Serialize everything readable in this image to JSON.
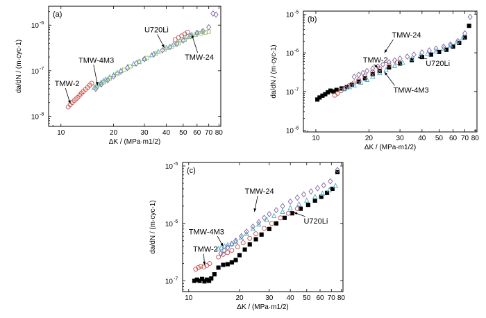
{
  "chart_data": [
    {
      "type": "scatter",
      "panel_label": "(a)",
      "xscale": "log",
      "yscale": "log",
      "xlim": [
        8.5,
        82
      ],
      "ylim": [
        6e-09,
        2.6e-06
      ],
      "x_ticks": [
        10,
        20,
        30,
        40,
        50,
        60,
        70,
        80
      ],
      "x_tick_labels": [
        "10",
        "20",
        "30",
        "40",
        "50",
        "60",
        "70",
        "80"
      ],
      "y_ticks": [
        1e-08,
        1e-07,
        1e-06
      ],
      "y_tick_labels": [
        "10",
        "10",
        "10"
      ],
      "y_tick_exponents": [
        "-8",
        "-7",
        "-6"
      ],
      "xlabel": "ΔK / (MPa·m1/2)",
      "ylabel": "da/dN / (m·cyc-1)",
      "series": [
        {
          "name": "TMW-2",
          "marker": "circle-open",
          "color": "#c0504d",
          "x": [
            11.0,
            11.3,
            11.6,
            11.9,
            12.2,
            12.5,
            12.8,
            13.1,
            13.4,
            13.8,
            14.2,
            14.6,
            15.0,
            45.0,
            47.0,
            49.0,
            51.0,
            53.0
          ],
          "y": [
            1.6e-08,
            1.8e-08,
            2e-08,
            2.2e-08,
            2.4e-08,
            2.6e-08,
            2.9e-08,
            3.2e-08,
            3.5e-08,
            3.9e-08,
            4.3e-08,
            4.8e-08,
            5.3e-08,
            4.8e-07,
            5.3e-07,
            5.8e-07,
            6.4e-07,
            7e-07
          ]
        },
        {
          "name": "TMW-4M3",
          "marker": "triangle-open",
          "color": "#4bacc6",
          "x": [
            15.5,
            16.0,
            16.5,
            17.0,
            17.5,
            18.0,
            19.0,
            20.0,
            21.0,
            22.0,
            24.0,
            26.0,
            28.0,
            30.0,
            33.0,
            36.0,
            40.0,
            44.0,
            48.0,
            52.0,
            56.0,
            60.0,
            64.0
          ],
          "y": [
            4.2e-08,
            4.6e-08,
            5e-08,
            5.5e-08,
            6e-08,
            6.4e-08,
            7.2e-08,
            8e-08,
            9e-08,
            1e-07,
            1.2e-07,
            1.4e-07,
            1.6e-07,
            1.8e-07,
            2.2e-07,
            2.6e-07,
            3.2e-07,
            3.8e-07,
            4.6e-07,
            5.5e-07,
            6.2e-07,
            6.8e-07,
            7.2e-07
          ]
        },
        {
          "name": "TMW-24",
          "marker": "diamond-open",
          "color": "#8064a2",
          "x": [
            15.8,
            17.0,
            18.5,
            20.0,
            22.0,
            24.0,
            27.0,
            30.0,
            34.0,
            38.0,
            42.0,
            46.0,
            50.0,
            55.0,
            60.0,
            65.0,
            70.0,
            74.0,
            77.0
          ],
          "y": [
            4e-08,
            5e-08,
            6.2e-08,
            7.5e-08,
            9.5e-08,
            1.15e-07,
            1.45e-07,
            1.8e-07,
            2.3e-07,
            2.8e-07,
            3.3e-07,
            3.9e-07,
            4.6e-07,
            5.8e-07,
            6.8e-07,
            7.4e-07,
            9e-07,
            1.8e-06,
            1.7e-06
          ]
        },
        {
          "name": "U720Li",
          "marker": "square-open",
          "color": "#9bbb59",
          "x": [
            16.0,
            17.5,
            19.0,
            21.0,
            23.0,
            25.0,
            28.0,
            31.0,
            35.0,
            39.0,
            43.0,
            47.0,
            51.0,
            55.0,
            59.0,
            63.0,
            67.0,
            70.0
          ],
          "y": [
            4.5e-08,
            5.6e-08,
            6.8e-08,
            8.5e-08,
            1.05e-07,
            1.25e-07,
            1.55e-07,
            1.9e-07,
            2.4e-07,
            2.9e-07,
            3.4e-07,
            4e-07,
            4.8e-07,
            5.6e-07,
            6.2e-07,
            6.6e-07,
            6.9e-07,
            7.2e-07
          ]
        }
      ],
      "annotations": [
        {
          "text": "TMW-2",
          "tx": 9.2,
          "ty": 4.6e-08,
          "ax": 11.3,
          "ay": 1.9e-08
        },
        {
          "text": "TMW-4M3",
          "tx": 12.6,
          "ty": 1.5e-07,
          "ax": 16.2,
          "ay": 4.8e-08
        },
        {
          "text": "U720Li",
          "tx": 30.0,
          "ty": 7e-07,
          "ax": 39.0,
          "ay": 3.2e-07
        },
        {
          "text": "TMW-24",
          "tx": 51.0,
          "ty": 1.75e-07,
          "ax": 56.0,
          "ay": 6.2e-07
        }
      ]
    },
    {
      "type": "scatter",
      "panel_label": "(b)",
      "xscale": "log",
      "yscale": "log",
      "xlim": [
        8.5,
        82
      ],
      "ylim": [
        9e-09,
        1.2e-05
      ],
      "x_ticks": [
        10,
        20,
        30,
        40,
        50,
        60,
        70,
        80
      ],
      "x_tick_labels": [
        "10",
        "20",
        "30",
        "40",
        "50",
        "60",
        "70",
        "80"
      ],
      "y_ticks": [
        1e-08,
        1e-07,
        1e-06,
        1e-05
      ],
      "y_tick_labels": [
        "10",
        "10",
        "10",
        "10"
      ],
      "y_tick_exponents": [
        "-8",
        "-7",
        "-6",
        "-5"
      ],
      "xlabel": "ΔK / (MPa·m1/2)",
      "ylabel": "da/dN / (m·cyc-1)",
      "series": [
        {
          "name": "U720Li",
          "marker": "square-filled",
          "color": "#000000",
          "x": [
            10.2,
            10.5,
            10.9,
            11.3,
            11.7,
            12.1,
            12.6,
            13.1,
            14.0,
            15.0,
            16.0,
            17.5,
            19.0,
            21.0,
            23.0,
            26.0,
            30.0,
            35.0,
            40.0,
            45.0,
            50.0,
            55.0,
            60.0,
            65.0,
            70.0,
            74.0
          ],
          "y": [
            6.2e-08,
            7e-08,
            7.8e-08,
            8.5e-08,
            9.5e-08,
            1.05e-07,
            1e-07,
            1.1e-07,
            1.2e-07,
            1.3e-07,
            1.5e-07,
            1.8e-07,
            2.2e-07,
            2.8e-07,
            3.4e-07,
            4.2e-07,
            5.3e-07,
            6.5e-07,
            7.8e-07,
            9e-07,
            1.05e-06,
            1.2e-06,
            1.45e-06,
            1.8e-06,
            2.5e-06,
            5e-06
          ]
        },
        {
          "name": "TMW-2",
          "marker": "circle-open",
          "color": "#c0504d",
          "x": [
            12.8,
            13.3,
            13.9,
            14.6,
            15.4,
            16.4,
            17.5,
            19.0,
            21.0,
            23.0,
            26.0,
            29.0
          ],
          "y": [
            8e-08,
            9e-08,
            1.05e-07,
            1.2e-07,
            1.4e-07,
            1.65e-07,
            2e-07,
            2.5e-07,
            3.2e-07,
            3.9e-07,
            4.8e-07,
            5.7e-07
          ]
        },
        {
          "name": "TMW-4M3",
          "marker": "triangle-open",
          "color": "#4bacc6",
          "x": [
            14.5,
            15.5,
            16.5,
            18.0,
            19.5,
            21.0,
            23.0,
            25.0,
            28.0,
            31.0,
            35.0,
            39.0,
            43.0,
            48.0,
            53.0,
            58.0,
            63.0,
            68.0
          ],
          "y": [
            1.15e-07,
            1.3e-07,
            1.45e-07,
            1.7e-07,
            2e-07,
            2.4e-07,
            3e-07,
            3.6e-07,
            4.6e-07,
            5.6e-07,
            7e-07,
            8.2e-07,
            9.4e-07,
            1.1e-06,
            1.3e-06,
            1.55e-06,
            1.9e-06,
            2.4e-06
          ]
        },
        {
          "name": "TMW-24",
          "marker": "diamond-open",
          "color": "#8064a2",
          "x": [
            16.5,
            17.5,
            18.5,
            19.5,
            21.0,
            22.5,
            24.0,
            26.0,
            28.0,
            30.0,
            33.0,
            36.0,
            40.0,
            44.0,
            48.0,
            53.0,
            58.0,
            64.0,
            70.0,
            75.0
          ],
          "y": [
            2.4e-07,
            2.7e-07,
            3e-07,
            3.4e-07,
            3.9e-07,
            4.4e-07,
            5e-07,
            5.7e-07,
            6.4e-07,
            7.1e-07,
            8e-07,
            9e-07,
            1.02e-06,
            1.15e-06,
            1.28e-06,
            1.45e-06,
            1.65e-06,
            2e-06,
            3.2e-06,
            8.5e-06
          ]
        }
      ],
      "annotations": [
        {
          "text": "TMW-24",
          "tx": 27.0,
          "ty": 2.5e-06,
          "ax": 24.5,
          "ay": 1e-06
        },
        {
          "text": "TMW-2",
          "tx": 18.5,
          "ty": 5.6e-07,
          "ax": 22.5,
          "ay": 4.2e-07
        },
        {
          "text": "U720Li",
          "tx": 42.0,
          "ty": 4.6e-07,
          "ax": 38.0,
          "ay": 7.6e-07
        },
        {
          "text": "TMW-4M3",
          "tx": 27.5,
          "ty": 9.4e-08,
          "ax": 24.5,
          "ay": 3.2e-07
        }
      ]
    },
    {
      "type": "scatter",
      "panel_label": "(c)",
      "xscale": "log",
      "yscale": "log",
      "xlim": [
        9.2,
        82
      ],
      "ylim": [
        6.5e-08,
        1.15e-05
      ],
      "x_ticks": [
        10,
        20,
        30,
        40,
        50,
        60,
        70,
        80
      ],
      "x_tick_labels": [
        "10",
        "20",
        "30",
        "40",
        "50",
        "60",
        "70",
        "80"
      ],
      "y_ticks": [
        1e-07,
        1e-06,
        1e-05
      ],
      "y_tick_labels": [
        "10",
        "10",
        "10"
      ],
      "y_tick_exponents": [
        "-7",
        "-6",
        "-5"
      ],
      "xlabel": "ΔK / (MPa·m1/2)",
      "ylabel": "da/dN / (m·cyc-1)",
      "series": [
        {
          "name": "U720Li",
          "marker": "square-filled",
          "color": "#000000",
          "x": [
            10.8,
            11.2,
            11.6,
            12.0,
            12.4,
            12.8,
            13.2,
            13.6,
            14.2,
            15.0,
            16.0,
            17.0,
            18.0,
            19.0,
            20.0,
            21.5,
            23.0,
            25.0,
            27.0,
            30.0,
            33.0,
            37.0,
            41.0,
            46.0,
            51.0,
            56.0,
            61.0,
            66.0,
            71.0,
            76.0
          ],
          "y": [
            1e-07,
            1.05e-07,
            1e-07,
            1.08e-07,
            9.8e-08,
            1.05e-07,
            1e-07,
            1.1e-07,
            1.3e-07,
            1.7e-07,
            1.9e-07,
            1.95e-07,
            2.1e-07,
            2.3e-07,
            2.8e-07,
            3.5e-07,
            4.3e-07,
            5.3e-07,
            6.4e-07,
            8e-07,
            1e-06,
            1.25e-06,
            1.5e-06,
            1.8e-06,
            2.1e-06,
            2.5e-06,
            2.9e-06,
            3.4e-06,
            4e-06,
            7.8e-06
          ]
        },
        {
          "name": "TMW-2",
          "marker": "circle-open",
          "color": "#c0504d",
          "x": [
            11.0,
            11.4,
            11.8,
            12.3,
            12.8,
            13.3,
            15.0,
            16.0,
            17.0,
            18.0,
            19.5,
            21.0,
            23.0,
            25.0,
            28.0,
            31.0,
            35.0,
            39.0,
            44.0
          ],
          "y": [
            1.6e-07,
            1.7e-07,
            1.8e-07,
            1.75e-07,
            1.85e-07,
            2e-07,
            2.6e-07,
            2.9e-07,
            3.1e-07,
            3.4e-07,
            3.9e-07,
            4.6e-07,
            5.5e-07,
            6.6e-07,
            8.2e-07,
            1e-06,
            1.25e-06,
            1.5e-06,
            1.8e-06
          ]
        },
        {
          "name": "TMW-4M3",
          "marker": "triangle-open",
          "color": "#4bacc6",
          "x": [
            15.0,
            15.6,
            16.3,
            17.0,
            18.0,
            19.0,
            20.5,
            22.0,
            24.0,
            26.0,
            29.0,
            32.0,
            36.0,
            40.0,
            45.0,
            50.0,
            56.0,
            62.0,
            68.0,
            74.0
          ],
          "y": [
            3.6e-07,
            3.8e-07,
            4e-07,
            4.2e-07,
            4.4e-07,
            4.8e-07,
            5.6e-07,
            6.6e-07,
            8e-07,
            9.6e-07,
            1.15e-06,
            1.35e-06,
            1.6e-06,
            1.85e-06,
            2.15e-06,
            2.5e-06,
            2.9e-06,
            3.3e-06,
            3.8e-06,
            4.5e-06
          ]
        },
        {
          "name": "TMW-24",
          "marker": "diamond-open",
          "color": "#8064a2",
          "x": [
            15.5,
            16.2,
            17.0,
            18.0,
            19.0,
            20.5,
            22.0,
            24.0,
            26.0,
            28.0,
            30.0,
            33.0,
            36.0,
            40.0,
            44.0,
            48.0,
            53.0,
            58.0,
            63.0,
            69.0,
            76.0
          ],
          "y": [
            3e-07,
            3.4e-07,
            3.8e-07,
            4.4e-07,
            5e-07,
            6e-07,
            7.2e-07,
            8.8e-07,
            1.05e-06,
            1.25e-06,
            1.45e-06,
            1.7e-06,
            2e-06,
            2.4e-06,
            2.8e-06,
            3.2e-06,
            3.6e-06,
            4.1e-06,
            4.6e-06,
            5.4e-06,
            8.5e-06
          ]
        }
      ],
      "annotations": [
        {
          "text": "TMW-24",
          "tx": 21.5,
          "ty": 3.3e-06,
          "ax": 24.5,
          "ay": 1.6e-06
        },
        {
          "text": "U720Li",
          "tx": 48.0,
          "ty": 1e-06,
          "ax": 42.0,
          "ay": 1.55e-06
        },
        {
          "text": "TMW-4M3",
          "tx": 10.0,
          "ty": 6.5e-07,
          "ax": 16.0,
          "ay": 4e-07
        },
        {
          "text": "TMW-2",
          "tx": 10.6,
          "ty": 3.2e-07,
          "ax": 12.4,
          "ay": 1.9e-07
        }
      ]
    }
  ]
}
